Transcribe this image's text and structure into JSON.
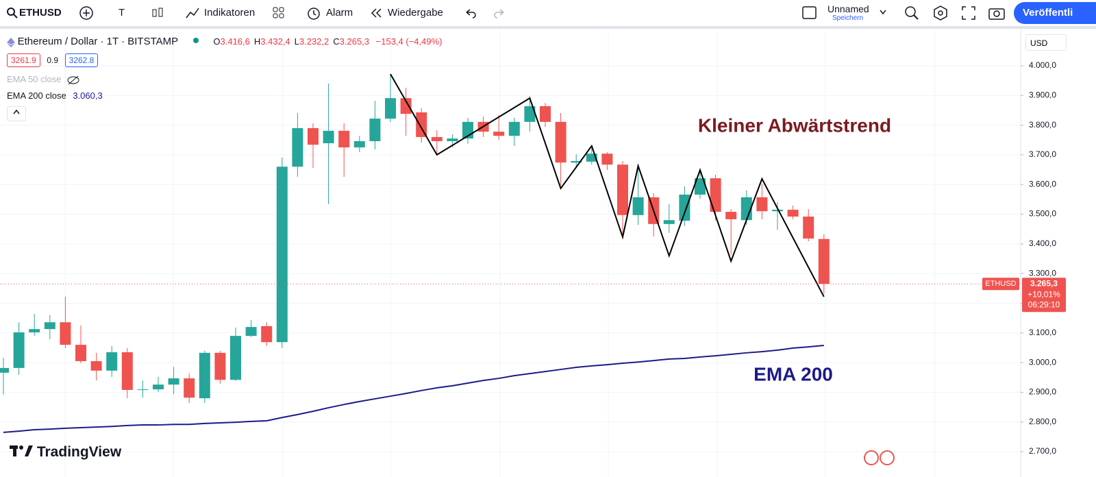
{
  "toolbar": {
    "symbol": "ETHUSD",
    "text_tool": "T",
    "indicators": "Indikatoren",
    "alarm": "Alarm",
    "replay": "Wiedergabe",
    "layout_name": "Unnamed",
    "save": "Speichern",
    "publish": "Veröffentli",
    "currency": "USD"
  },
  "legend": {
    "title": "Ethereum / Dollar · 1T · BITSTAMP",
    "ohlc": [
      {
        "label": "O",
        "value": "3.416,6"
      },
      {
        "label": "H",
        "value": "3.432,4"
      },
      {
        "label": "L",
        "value": "3.232,2"
      },
      {
        "label": "C",
        "value": "3.265,3"
      }
    ],
    "change": "−153,4 (−4,49%)",
    "bid": "3261.9",
    "spread": "0.9",
    "ask": "3262.8",
    "ema50": "EMA 50 close",
    "ema200": "EMA 200 close",
    "ema200_value": "3.060,3"
  },
  "logo": "TradingView",
  "chart_data": {
    "type": "candlestick",
    "open": [
      2966,
      2982,
      3102,
      3113,
      3136,
      3060,
      3005,
      2973,
      3035,
      2908,
      2910,
      2926,
      2947,
      2880,
      3033,
      2942,
      3090,
      3123,
      3069,
      3660,
      3790,
      3739,
      3781,
      3725,
      3746,
      3822,
      3891,
      3843,
      3760,
      3746,
      3755,
      3811,
      3778,
      3764,
      3811,
      3864,
      3811,
      3674,
      3677,
      3704,
      3667,
      3497,
      3557,
      3467,
      3478,
      3566,
      3621,
      3508,
      3480,
      3557,
      3510,
      3515,
      3492,
      3416.6
    ],
    "high": [
      3016,
      3136,
      3164,
      3160,
      3222,
      3125,
      3033,
      3056,
      3049,
      2940,
      2952,
      2986,
      2963,
      3040,
      3040,
      3118,
      3143,
      3136,
      3691,
      3841,
      3806,
      3940,
      3806,
      3764,
      3882,
      3972,
      3926,
      3857,
      3783,
      3769,
      3825,
      3829,
      3834,
      3825,
      3898,
      3875,
      3841,
      3702,
      3725,
      3709,
      3679,
      3656,
      3571,
      3534,
      3594,
      3649,
      3633,
      3517,
      3580,
      3603,
      3540,
      3529,
      3517,
      3432.4
    ],
    "low": [
      2892,
      2959,
      3090,
      3079,
      3049,
      2998,
      2940,
      2952,
      2880,
      2882,
      2901,
      2894,
      2864,
      2864,
      2929,
      2938,
      3086,
      3056,
      3049,
      3626,
      3656,
      3534,
      3626,
      3709,
      3718,
      3811,
      3764,
      3741,
      3702,
      3725,
      3737,
      3760,
      3751,
      3730,
      3778,
      3794,
      3598,
      3656,
      3667,
      3649,
      3425,
      3464,
      3425,
      3437,
      3460,
      3552,
      3478,
      3363,
      3464,
      3483,
      3448,
      3483,
      3409,
      3232.2
    ],
    "close": [
      2982,
      3102,
      3113,
      3136,
      3060,
      3005,
      2973,
      3035,
      2908,
      2910,
      2926,
      2947,
      2882,
      3033,
      2942,
      3090,
      3120,
      3069,
      3660,
      3790,
      3734,
      3781,
      3725,
      3746,
      3822,
      3891,
      3838,
      3760,
      3746,
      3755,
      3811,
      3778,
      3764,
      3811,
      3864,
      3811,
      3674,
      3679,
      3704,
      3667,
      3497,
      3557,
      3467,
      3480,
      3566,
      3621,
      3508,
      3483,
      3557,
      3510,
      3515,
      3492,
      3418,
      3265.3
    ],
    "up_color": "#26a69a",
    "down_color": "#ef5350",
    "ema": {
      "name": "EMA 200",
      "color": "#1c1a8a",
      "values": [
        2765,
        2769,
        2774,
        2776,
        2779,
        2781,
        2783,
        2785,
        2788,
        2790,
        2790,
        2792,
        2792,
        2795,
        2797,
        2799,
        2802,
        2804,
        2815,
        2825,
        2836,
        2848,
        2859,
        2869,
        2878,
        2887,
        2896,
        2906,
        2915,
        2922,
        2931,
        2940,
        2947,
        2956,
        2963,
        2970,
        2977,
        2984,
        2989,
        2993,
        2998,
        3002,
        3007,
        3012,
        3014,
        3019,
        3023,
        3028,
        3033,
        3037,
        3042,
        3049,
        3053,
        3058
      ]
    },
    "zigzag": {
      "name": "Kleiner Abwärtstrend",
      "color": "#000000",
      "x": [
        25,
        28,
        34,
        36,
        38,
        40,
        41,
        43,
        45,
        47,
        49,
        53
      ],
      "values": [
        3972,
        3700,
        3891,
        3587,
        3730,
        3423,
        3663,
        3360,
        3649,
        3342,
        3619,
        3222
      ]
    },
    "ylim": [
      2647,
      4120
    ],
    "yticks": [
      {
        "value": 2700,
        "label": "2.700,0"
      },
      {
        "value": 2800,
        "label": "2.800,0"
      },
      {
        "value": 2900,
        "label": "2.900,0"
      },
      {
        "value": 3000,
        "label": "3.000,0"
      },
      {
        "value": 3100,
        "label": "3.100,0"
      },
      {
        "value": 3200,
        "label": "3.200,0"
      },
      {
        "value": 3300,
        "label": "3.300,0"
      },
      {
        "value": 3400,
        "label": "3.400,0"
      },
      {
        "value": 3500,
        "label": "3.500,0"
      },
      {
        "value": 3600,
        "label": "3.600,0"
      },
      {
        "value": 3700,
        "label": "3.700,0"
      },
      {
        "value": 3800,
        "label": "3.800,0"
      },
      {
        "value": 3900,
        "label": "3.900,0"
      },
      {
        "value": 4000,
        "label": "4.000,0"
      }
    ],
    "grid": true,
    "price_badge": {
      "symbol": "ETHUSD",
      "price": "3.265,3",
      "change": "+10,01%",
      "countdown": "06:29:10"
    },
    "annotations": [
      {
        "text": "Kleiner Abwärtstrend",
        "color": "#7b1a1f"
      },
      {
        "text": "EMA 200",
        "color": "#1c1a8a"
      }
    ]
  }
}
